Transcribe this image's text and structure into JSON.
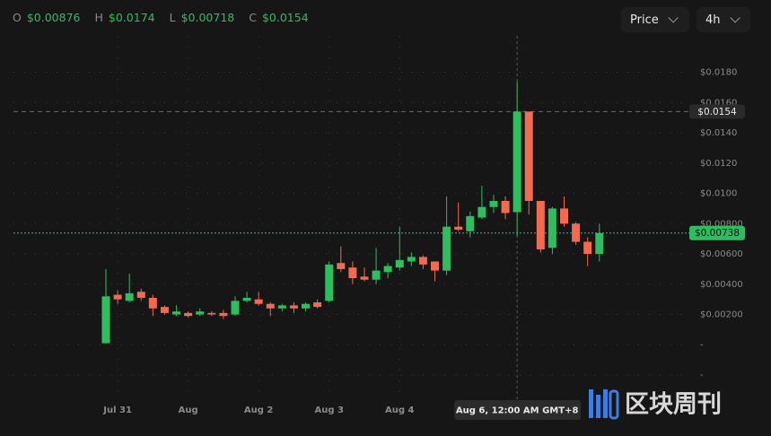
{
  "chart_data": {
    "type": "candlestick",
    "ohlc_keys": [
      "O",
      "H",
      "L",
      "C"
    ],
    "ohlc_labels": [
      "$0.00876",
      "$0.0174",
      "$0.00718",
      "$0.0154"
    ],
    "hover_index": 35,
    "controls": [
      "Price",
      "4h"
    ],
    "categories": [
      null,
      "Jul 31",
      null,
      null,
      null,
      null,
      null,
      "Aug",
      null,
      null,
      null,
      null,
      null,
      "Aug 2",
      null,
      null,
      null,
      null,
      null,
      "Aug 3",
      null,
      null,
      null,
      null,
      null,
      "Aug 4",
      null,
      null,
      null,
      null,
      null,
      null,
      null,
      null,
      null,
      null,
      null,
      null,
      null,
      null,
      null,
      null,
      null
    ],
    "open": [
      0.0001,
      0.0033,
      0.0029,
      0.0035,
      0.0031,
      0.0025,
      0.002,
      0.0021,
      0.002,
      0.0021,
      0.0021,
      0.002,
      0.0029,
      0.003,
      0.0027,
      0.0024,
      0.0026,
      0.0024,
      0.0028,
      0.0029,
      0.0054,
      0.0051,
      0.0045,
      0.0043,
      0.0048,
      0.0051,
      0.0055,
      0.0058,
      0.0055,
      0.0049,
      0.0078,
      0.0075,
      0.0084,
      0.0091,
      0.0095,
      0.00876,
      0.0154,
      0.0095,
      0.0064,
      0.009,
      0.008,
      0.0068,
      0.006
    ],
    "high": [
      0.005,
      0.0036,
      0.0047,
      0.0037,
      0.0033,
      0.0026,
      0.0026,
      0.0022,
      0.0024,
      0.0022,
      0.0023,
      0.0032,
      0.0035,
      0.0035,
      0.0028,
      0.0027,
      0.0028,
      0.0028,
      0.003,
      0.0055,
      0.0065,
      0.0055,
      0.0051,
      0.0064,
      0.0054,
      0.0078,
      0.0061,
      0.0059,
      0.0055,
      0.0098,
      0.0094,
      0.0088,
      0.0105,
      0.0099,
      0.0098,
      0.0174,
      0.0154,
      0.0095,
      0.0091,
      0.0098,
      0.0081,
      0.0071,
      0.008
    ],
    "low": [
      0.0001,
      0.0027,
      0.0028,
      0.0029,
      0.0019,
      0.002,
      0.0019,
      0.0018,
      0.0019,
      0.0019,
      0.0017,
      0.0019,
      0.0028,
      0.0026,
      0.0019,
      0.0022,
      0.0021,
      0.0022,
      0.0024,
      0.0028,
      0.0048,
      0.004,
      0.0042,
      0.004,
      0.0044,
      0.0049,
      0.0052,
      0.005,
      0.0042,
      0.0046,
      0.0075,
      0.0071,
      0.0083,
      0.0087,
      0.0083,
      0.00718,
      0.0086,
      0.0061,
      0.006,
      0.0078,
      0.0066,
      0.0052,
      0.0055
    ],
    "close": [
      0.0032,
      0.003,
      0.0034,
      0.0031,
      0.0024,
      0.0021,
      0.0022,
      0.0019,
      0.0022,
      0.002,
      0.0019,
      0.0029,
      0.0031,
      0.0027,
      0.0024,
      0.0026,
      0.0024,
      0.0027,
      0.0025,
      0.0053,
      0.005,
      0.0044,
      0.0043,
      0.0049,
      0.0052,
      0.0056,
      0.0058,
      0.0053,
      0.0049,
      0.0078,
      0.0076,
      0.0085,
      0.0091,
      0.0095,
      0.0087,
      0.0154,
      0.0095,
      0.0063,
      0.009,
      0.008,
      0.0068,
      0.006,
      0.00738
    ],
    "up_color": "#2ebd5f",
    "down_color": "#f26b50",
    "ylim": [
      -0.0033,
      0.0204
    ],
    "yticks": [
      {
        "value": -0.002,
        "label": "-"
      },
      {
        "value": 0,
        "label": "-"
      },
      {
        "value": 0.002,
        "label": "$0.00200"
      },
      {
        "value": 0.004,
        "label": "$0.00400"
      },
      {
        "value": 0.006,
        "label": "$0.00600"
      },
      {
        "value": 0.008,
        "label": "$0.00800"
      },
      {
        "value": 0.01,
        "label": "$0.0100"
      },
      {
        "value": 0.012,
        "label": "$0.0120"
      },
      {
        "value": 0.014,
        "label": "$0.0140"
      },
      {
        "value": 0.016,
        "label": "$0.0160"
      },
      {
        "value": 0.018,
        "label": "$0.0180"
      }
    ],
    "price_lines": [
      {
        "value": 0.0154,
        "label": "$0.0154",
        "color": "#6a6a6a"
      },
      {
        "value": 0.00738,
        "label": "$0.00738",
        "color": "#2ebd5f"
      }
    ],
    "crosshair_label": "Aug 6, 12:00 AM GMT+8",
    "grid": true,
    "watermark": "区块周刊"
  }
}
